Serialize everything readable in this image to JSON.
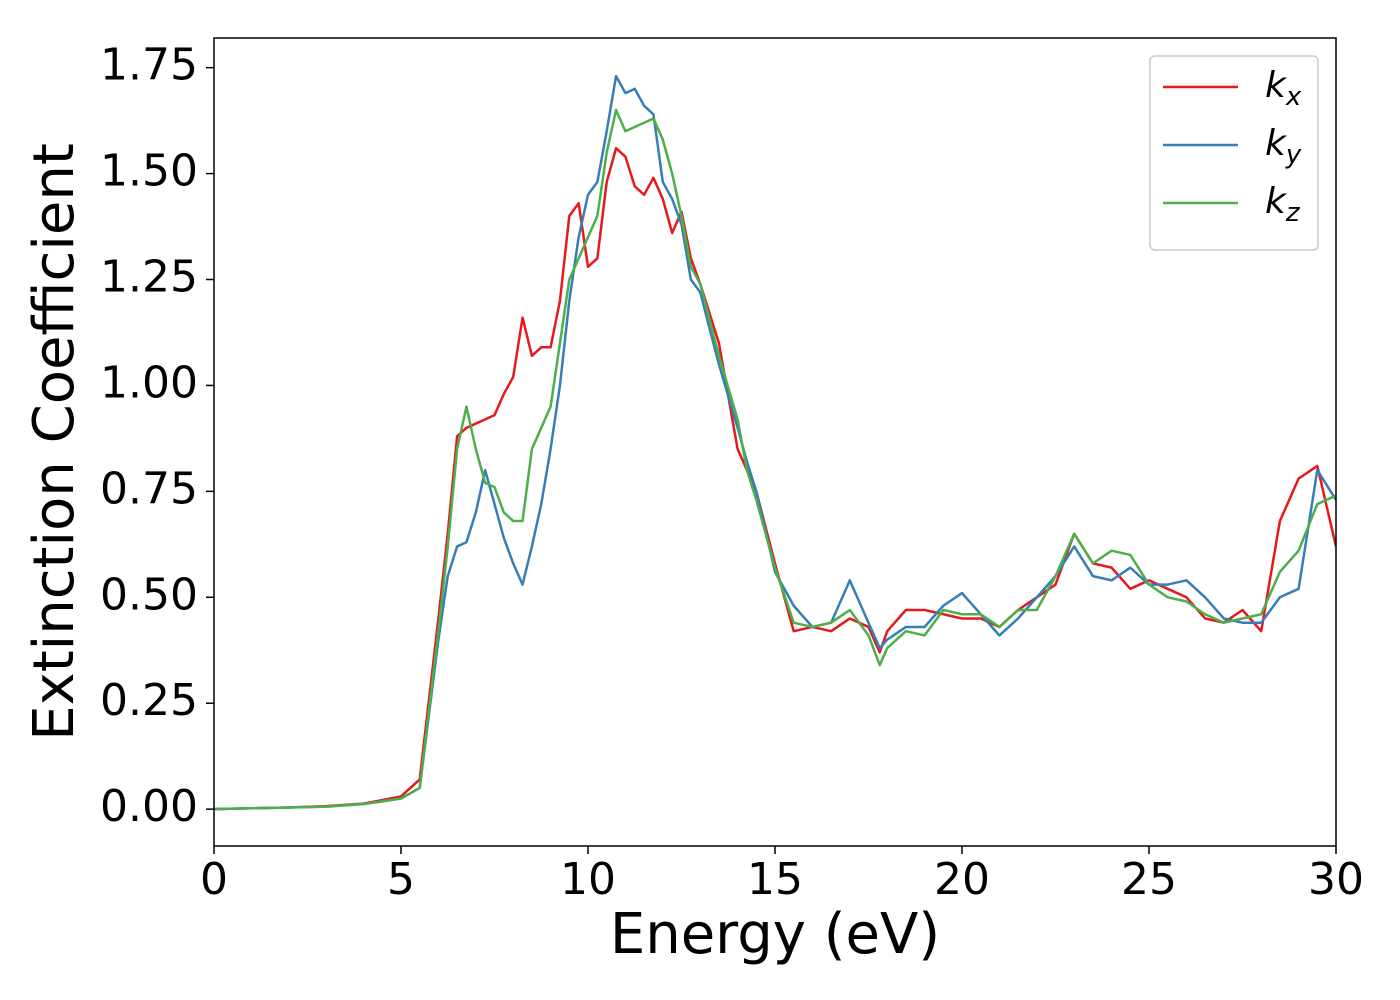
{
  "chart_data": {
    "type": "line",
    "xlabel": "Energy (eV)",
    "ylabel": "Extinction Coefficient",
    "x": [
      0,
      1,
      2,
      3,
      4,
      5,
      5.5,
      6,
      6.25,
      6.5,
      6.75,
      7,
      7.25,
      7.5,
      7.75,
      8,
      8.25,
      8.5,
      8.75,
      9,
      9.25,
      9.5,
      9.75,
      10,
      10.25,
      10.5,
      10.75,
      11,
      11.25,
      11.5,
      11.75,
      12,
      12.25,
      12.5,
      12.75,
      13,
      13.5,
      14,
      14.25,
      14.5,
      15,
      15.5,
      16,
      16.5,
      17,
      17.5,
      17.8,
      18,
      18.5,
      19,
      19.5,
      20,
      20.5,
      21,
      21.5,
      22,
      22.5,
      23,
      23.5,
      24,
      24.5,
      25,
      25.5,
      26,
      26.5,
      27,
      27.5,
      28,
      28.5,
      29,
      29.5,
      30
    ],
    "series": [
      {
        "name": "kx",
        "color": "#e41a1c",
        "values": [
          0,
          0.002,
          0.004,
          0.007,
          0.013,
          0.03,
          0.07,
          0.45,
          0.65,
          0.88,
          0.9,
          0.91,
          0.92,
          0.93,
          0.98,
          1.02,
          1.16,
          1.07,
          1.09,
          1.09,
          1.2,
          1.4,
          1.43,
          1.28,
          1.3,
          1.48,
          1.56,
          1.54,
          1.47,
          1.45,
          1.49,
          1.44,
          1.36,
          1.41,
          1.3,
          1.24,
          1.1,
          0.85,
          0.8,
          0.75,
          0.58,
          0.42,
          0.43,
          0.42,
          0.45,
          0.43,
          0.37,
          0.42,
          0.47,
          0.47,
          0.46,
          0.45,
          0.45,
          0.43,
          0.47,
          0.5,
          0.53,
          0.65,
          0.58,
          0.57,
          0.52,
          0.54,
          0.52,
          0.5,
          0.45,
          0.44,
          0.47,
          0.42,
          0.68,
          0.78,
          0.81,
          0.62
        ]
      },
      {
        "name": "ky",
        "color": "#377eb8",
        "values": [
          0,
          0.002,
          0.004,
          0.006,
          0.012,
          0.025,
          0.05,
          0.4,
          0.55,
          0.62,
          0.63,
          0.7,
          0.8,
          0.72,
          0.64,
          0.58,
          0.53,
          0.62,
          0.72,
          0.85,
          1.0,
          1.2,
          1.35,
          1.45,
          1.48,
          1.6,
          1.73,
          1.69,
          1.7,
          1.66,
          1.64,
          1.48,
          1.44,
          1.38,
          1.25,
          1.22,
          1.05,
          0.9,
          0.82,
          0.75,
          0.56,
          0.48,
          0.43,
          0.44,
          0.54,
          0.44,
          0.38,
          0.4,
          0.43,
          0.43,
          0.48,
          0.51,
          0.46,
          0.41,
          0.45,
          0.5,
          0.55,
          0.62,
          0.55,
          0.54,
          0.57,
          0.53,
          0.53,
          0.54,
          0.5,
          0.45,
          0.44,
          0.44,
          0.5,
          0.52,
          0.8,
          0.73
        ]
      },
      {
        "name": "kz",
        "color": "#4daf4a",
        "values": [
          0,
          0.002,
          0.004,
          0.006,
          0.012,
          0.025,
          0.05,
          0.42,
          0.62,
          0.85,
          0.95,
          0.85,
          0.77,
          0.76,
          0.7,
          0.68,
          0.68,
          0.85,
          0.9,
          0.95,
          1.1,
          1.25,
          1.3,
          1.35,
          1.4,
          1.55,
          1.65,
          1.6,
          1.61,
          1.62,
          1.63,
          1.58,
          1.5,
          1.4,
          1.28,
          1.24,
          1.07,
          0.92,
          0.8,
          0.73,
          0.57,
          0.44,
          0.43,
          0.44,
          0.47,
          0.41,
          0.34,
          0.38,
          0.42,
          0.41,
          0.47,
          0.46,
          0.46,
          0.43,
          0.47,
          0.47,
          0.55,
          0.65,
          0.58,
          0.61,
          0.6,
          0.53,
          0.5,
          0.49,
          0.46,
          0.44,
          0.45,
          0.46,
          0.56,
          0.61,
          0.72,
          0.74
        ]
      }
    ],
    "xlim": [
      0,
      30
    ],
    "ylim": [
      -0.087,
      1.82
    ],
    "xticks": [
      0,
      5,
      10,
      15,
      20,
      25,
      30
    ],
    "yticks": [
      {
        "value": 0,
        "label": "0.00"
      },
      {
        "value": 0.25,
        "label": "0.25"
      },
      {
        "value": 0.5,
        "label": "0.50"
      },
      {
        "value": 0.75,
        "label": "0.75"
      },
      {
        "value": 1.0,
        "label": "1.00"
      },
      {
        "value": 1.25,
        "label": "1.25"
      },
      {
        "value": 1.5,
        "label": "1.50"
      },
      {
        "value": 1.75,
        "label": "1.75"
      }
    ],
    "legend": "upper right",
    "grid": false
  }
}
